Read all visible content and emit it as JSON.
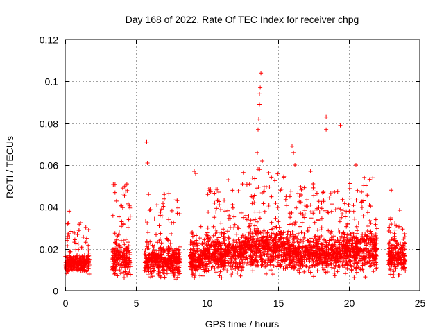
{
  "chart_data": {
    "type": "scatter",
    "title": "Day 168 of 2022, Rate Of TEC Index for receiver chpg",
    "xlabel": "GPS time / hours",
    "ylabel": "ROTI / TECUs",
    "xlim": [
      0,
      25
    ],
    "ylim": [
      0,
      0.12
    ],
    "x_ticks": [
      0,
      5,
      10,
      15,
      20,
      25
    ],
    "x_tick_labels": [
      "0",
      "5",
      "10",
      "15",
      "20",
      "25"
    ],
    "y_ticks": [
      0,
      0.02,
      0.04,
      0.06,
      0.08,
      0.1,
      0.12
    ],
    "y_tick_labels": [
      "0",
      "0.02",
      "0.04",
      "0.06",
      "0.08",
      "0.1",
      "0.12"
    ],
    "grid": true,
    "marker": "+",
    "color": "#ff0000",
    "segments": [
      {
        "start": 0.0,
        "end": 1.7,
        "min": 0.007,
        "typical": 0.013,
        "max": 0.033
      },
      {
        "start": 3.3,
        "end": 4.6,
        "min": 0.004,
        "typical": 0.015,
        "max": 0.051
      },
      {
        "start": 5.6,
        "end": 8.1,
        "min": 0.004,
        "typical": 0.014,
        "max": 0.047
      },
      {
        "start": 8.8,
        "end": 10.0,
        "min": 0.005,
        "typical": 0.015,
        "max": 0.031
      },
      {
        "start": 10.0,
        "end": 12.5,
        "min": 0.005,
        "typical": 0.017,
        "max": 0.049
      },
      {
        "start": 12.5,
        "end": 15.5,
        "min": 0.006,
        "typical": 0.02,
        "max": 0.058
      },
      {
        "start": 15.5,
        "end": 17.5,
        "min": 0.006,
        "typical": 0.018,
        "max": 0.052
      },
      {
        "start": 17.5,
        "end": 19.5,
        "min": 0.006,
        "typical": 0.017,
        "max": 0.048
      },
      {
        "start": 19.5,
        "end": 22.0,
        "min": 0.004,
        "typical": 0.019,
        "max": 0.056
      },
      {
        "start": 22.8,
        "end": 24.0,
        "min": 0.005,
        "typical": 0.016,
        "max": 0.039
      }
    ],
    "spikes": [
      {
        "x": 0.3,
        "y": 0.038
      },
      {
        "x": 4.2,
        "y": 0.05
      },
      {
        "x": 4.35,
        "y": 0.051
      },
      {
        "x": 5.75,
        "y": 0.071
      },
      {
        "x": 5.8,
        "y": 0.061
      },
      {
        "x": 7.0,
        "y": 0.046
      },
      {
        "x": 7.9,
        "y": 0.037
      },
      {
        "x": 9.1,
        "y": 0.057
      },
      {
        "x": 9.2,
        "y": 0.056
      },
      {
        "x": 11.5,
        "y": 0.053
      },
      {
        "x": 12.5,
        "y": 0.051
      },
      {
        "x": 13.0,
        "y": 0.051
      },
      {
        "x": 13.55,
        "y": 0.066
      },
      {
        "x": 13.6,
        "y": 0.077
      },
      {
        "x": 13.65,
        "y": 0.082
      },
      {
        "x": 13.7,
        "y": 0.089
      },
      {
        "x": 13.7,
        "y": 0.094
      },
      {
        "x": 13.75,
        "y": 0.097
      },
      {
        "x": 13.8,
        "y": 0.104
      },
      {
        "x": 13.6,
        "y": 0.058
      },
      {
        "x": 13.9,
        "y": 0.062
      },
      {
        "x": 16.0,
        "y": 0.069
      },
      {
        "x": 16.1,
        "y": 0.066
      },
      {
        "x": 16.2,
        "y": 0.06
      },
      {
        "x": 17.3,
        "y": 0.057
      },
      {
        "x": 18.4,
        "y": 0.083
      },
      {
        "x": 18.4,
        "y": 0.077
      },
      {
        "x": 19.4,
        "y": 0.079
      },
      {
        "x": 20.5,
        "y": 0.06
      },
      {
        "x": 23.0,
        "y": 0.048
      }
    ]
  }
}
